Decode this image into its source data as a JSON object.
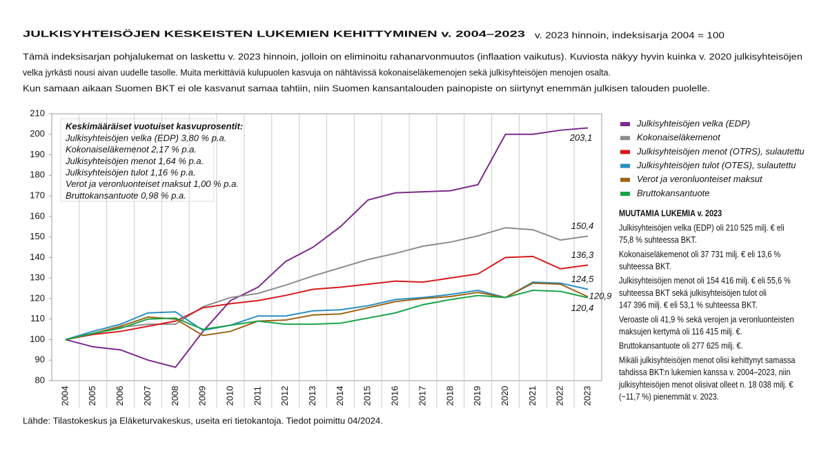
{
  "chart_data": {
    "type": "line",
    "title": "JULKISYHTEISÖJEN KESKEISTEN LUKEMIEN KEHITTYMINEN v. 2004–2023",
    "subtitle": "v. 2023 hinnoin, indeksisarja 2004 = 100",
    "description": [
      "Tämä indeksisarjan pohjalukemat on laskettu v. 2023 hinnoin, jolloin on eliminoitu rahanarvonmuutos (inflaation vaikutus). Kuviosta näkyy hyvin kuinka v. 2020 julkisyhteisöjen",
      "velka jyrkästi nousi aivan uudelle tasolle. Muita merkittäviä kulupuolen kasvuja on nähtävissä kokonaiseläkemenojen sekä julkisyhteisöjen menojen osalta.",
      "Kun samaan aikaan Suomen BKT ei ole kasvanut samaa tahtiin, niin Suomen kansantalouden painopiste on siirtynyt enemmän julkisen talouden puolelle."
    ],
    "categories": [
      "2004",
      "2005",
      "2006",
      "2007",
      "2008",
      "2009",
      "2010",
      "2011",
      "2012",
      "2013",
      "2014",
      "2015",
      "2016",
      "2017",
      "2018",
      "2019",
      "2020",
      "2021",
      "2022",
      "2023"
    ],
    "series": [
      {
        "name": "Julkisyhteisöjen velka (EDP)",
        "color": "#7b2a8c",
        "values": [
          100,
          96.5,
          95,
          90,
          86.5,
          104,
          119,
          125.5,
          138,
          145,
          155,
          168,
          171.5,
          172,
          172.5,
          175.5,
          200,
          200,
          202,
          203.1
        ],
        "value_labels": [
          null,
          null,
          null,
          null,
          null,
          null,
          null,
          null,
          null,
          null,
          null,
          null,
          null,
          null,
          null,
          null,
          null,
          null,
          null,
          "203,1"
        ]
      },
      {
        "name": "Kokonaiseläkemenot",
        "color": "#8c8c8c",
        "values": [
          100,
          103,
          106,
          107.5,
          107.5,
          116,
          120.5,
          122.5,
          126.5,
          131,
          135,
          139,
          142,
          145.5,
          147.5,
          150.5,
          154.5,
          153.5,
          148.5,
          150.4
        ],
        "value_labels": [
          null,
          null,
          null,
          null,
          null,
          null,
          null,
          null,
          null,
          null,
          null,
          null,
          null,
          null,
          null,
          null,
          null,
          null,
          null,
          "150,4"
        ]
      },
      {
        "name": "Julkisyhteisöjen menot (OTRS), sulautettu",
        "color": "#d7191c",
        "values": [
          100,
          102.5,
          104,
          106.5,
          109,
          115.5,
          117.5,
          119,
          121.5,
          124.5,
          125.5,
          127,
          128.5,
          128,
          130,
          132,
          140,
          140.5,
          134.5,
          136.3
        ],
        "value_labels": [
          null,
          null,
          null,
          null,
          null,
          null,
          null,
          null,
          null,
          null,
          null,
          null,
          null,
          null,
          null,
          null,
          null,
          null,
          null,
          "136,3"
        ]
      },
      {
        "name": "Julkisyhteisöjen tulot (OTES), sulautettu",
        "color": "#2a8fc0",
        "values": [
          100,
          104,
          107.5,
          113,
          113.5,
          104.5,
          107,
          111.5,
          111.5,
          114,
          114.5,
          116.5,
          119.5,
          120.5,
          122,
          124,
          120.5,
          128,
          127.5,
          124.5
        ],
        "value_labels": [
          null,
          null,
          null,
          null,
          null,
          null,
          null,
          null,
          null,
          null,
          null,
          null,
          null,
          null,
          null,
          null,
          null,
          null,
          null,
          "124,5"
        ]
      },
      {
        "name": "Verot ja veronluonteiset maksut",
        "color": "#9c6415",
        "values": [
          100,
          103,
          106.5,
          111,
          110,
          102,
          104,
          109,
          109.5,
          112,
          112.5,
          115.5,
          118.5,
          120,
          121,
          123,
          120.5,
          127.5,
          127,
          120.9
        ],
        "value_labels": [
          null,
          null,
          null,
          null,
          null,
          null,
          null,
          null,
          null,
          null,
          null,
          null,
          null,
          null,
          null,
          null,
          null,
          null,
          null,
          "120,9"
        ]
      },
      {
        "name": "Bruttokansantuote",
        "color": "#1aa34a",
        "values": [
          100,
          103,
          105.5,
          110,
          110.5,
          105,
          107,
          109,
          107.5,
          107.5,
          108,
          110.5,
          113,
          117,
          119.5,
          121.5,
          120.5,
          124,
          123.5,
          120.4
        ],
        "value_labels": [
          null,
          null,
          null,
          null,
          null,
          null,
          null,
          null,
          null,
          null,
          null,
          null,
          null,
          null,
          null,
          null,
          null,
          null,
          null,
          "120,4"
        ]
      }
    ],
    "ylim": [
      80,
      210
    ],
    "yticks": [
      80,
      90,
      100,
      110,
      120,
      130,
      140,
      150,
      160,
      170,
      180,
      190,
      200,
      210
    ],
    "inset": {
      "title": "Keskimääräiset vuotuiset kasvuprosentit:",
      "lines": [
        "Julkisyhteisöjen velka (EDP) 3,80 % p.a.",
        "Kokonaiseläkemenot 2,17 % p.a.",
        "Julkisyhteisöjen menot 1,64 % p.a.",
        "Julkisyhteisöjen tulot 1,16 % p.a.",
        "Verot ja veronluonteiset maksut 1,00 % p.a.",
        "Bruttokansantuote 0,98 % p.a."
      ]
    },
    "notes": {
      "title": "MUUTAMIA LUKEMIA v. 2023",
      "paragraphs": [
        [
          "Julkisyhteisöjen velka (EDP) oli 210 525 milj. € eli",
          "75,8 % suhteessa BKT."
        ],
        [
          "Kokonaiseläkemenot oli 37 731 milj. € eli 13,6 %",
          "suhteessa BKT."
        ],
        [
          "Julkisyhteisöjen menot oli 154 416 milj. € eli 55,6 %",
          "suhteessa BKT sekä julkisyhteisöjen tulot oli",
          "147 396 milj. € eli 53,1 % suhteessa BKT."
        ],
        [
          "Veroaste oli 41,9 % sekä verojen ja veronluonteisten",
          "maksujen kertymä oli 116 415 milj. €."
        ],
        [
          "Bruttokansantuote oli 277 625 milj. €."
        ],
        [
          "Mikäli julkisyhteisöjen menot olisi kehittynyt samassa",
          "tahdissa BKT:n lukemien kanssa v. 2004–2023, niin",
          "julkisyhteisöjen menot olisivat olleet n. 18 038 milj. €",
          "(−11,7 %) pienemmät v. 2023."
        ]
      ]
    },
    "source": "Lähde: Tilastokeskus ja Eläketurvakeskus, useita eri tietokantoja. Tiedot poimittu 04/2024."
  }
}
